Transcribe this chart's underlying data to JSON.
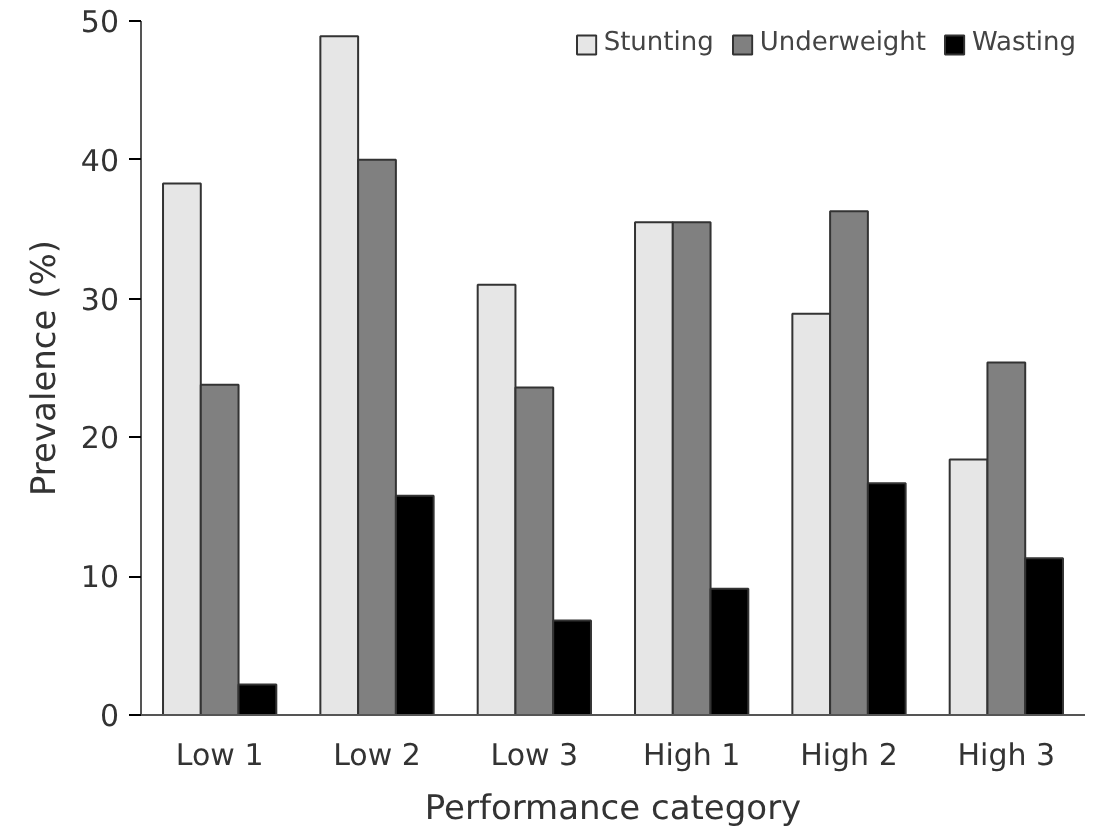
{
  "chart_data": {
    "type": "bar",
    "xlabel": "Performance category",
    "ylabel": "Prevalence (%)",
    "categories": [
      "Low 1",
      "Low 2",
      "Low 3",
      "High 1",
      "High 2",
      "High 3"
    ],
    "series": [
      {
        "name": "Stunting",
        "color": "#e6e6e6",
        "values": [
          38.3,
          48.9,
          31.0,
          35.5,
          28.9,
          18.4
        ]
      },
      {
        "name": "Underweight",
        "color": "#808080",
        "values": [
          23.8,
          40.0,
          23.6,
          35.5,
          36.3,
          25.4
        ]
      },
      {
        "name": "Wasting",
        "color": "#000000",
        "values": [
          2.2,
          15.8,
          6.8,
          9.1,
          16.7,
          11.3
        ]
      }
    ],
    "ylim": [
      0,
      50
    ],
    "yticks": [
      0,
      10,
      20,
      30,
      40,
      50
    ],
    "grid": false,
    "legend": "top right"
  }
}
